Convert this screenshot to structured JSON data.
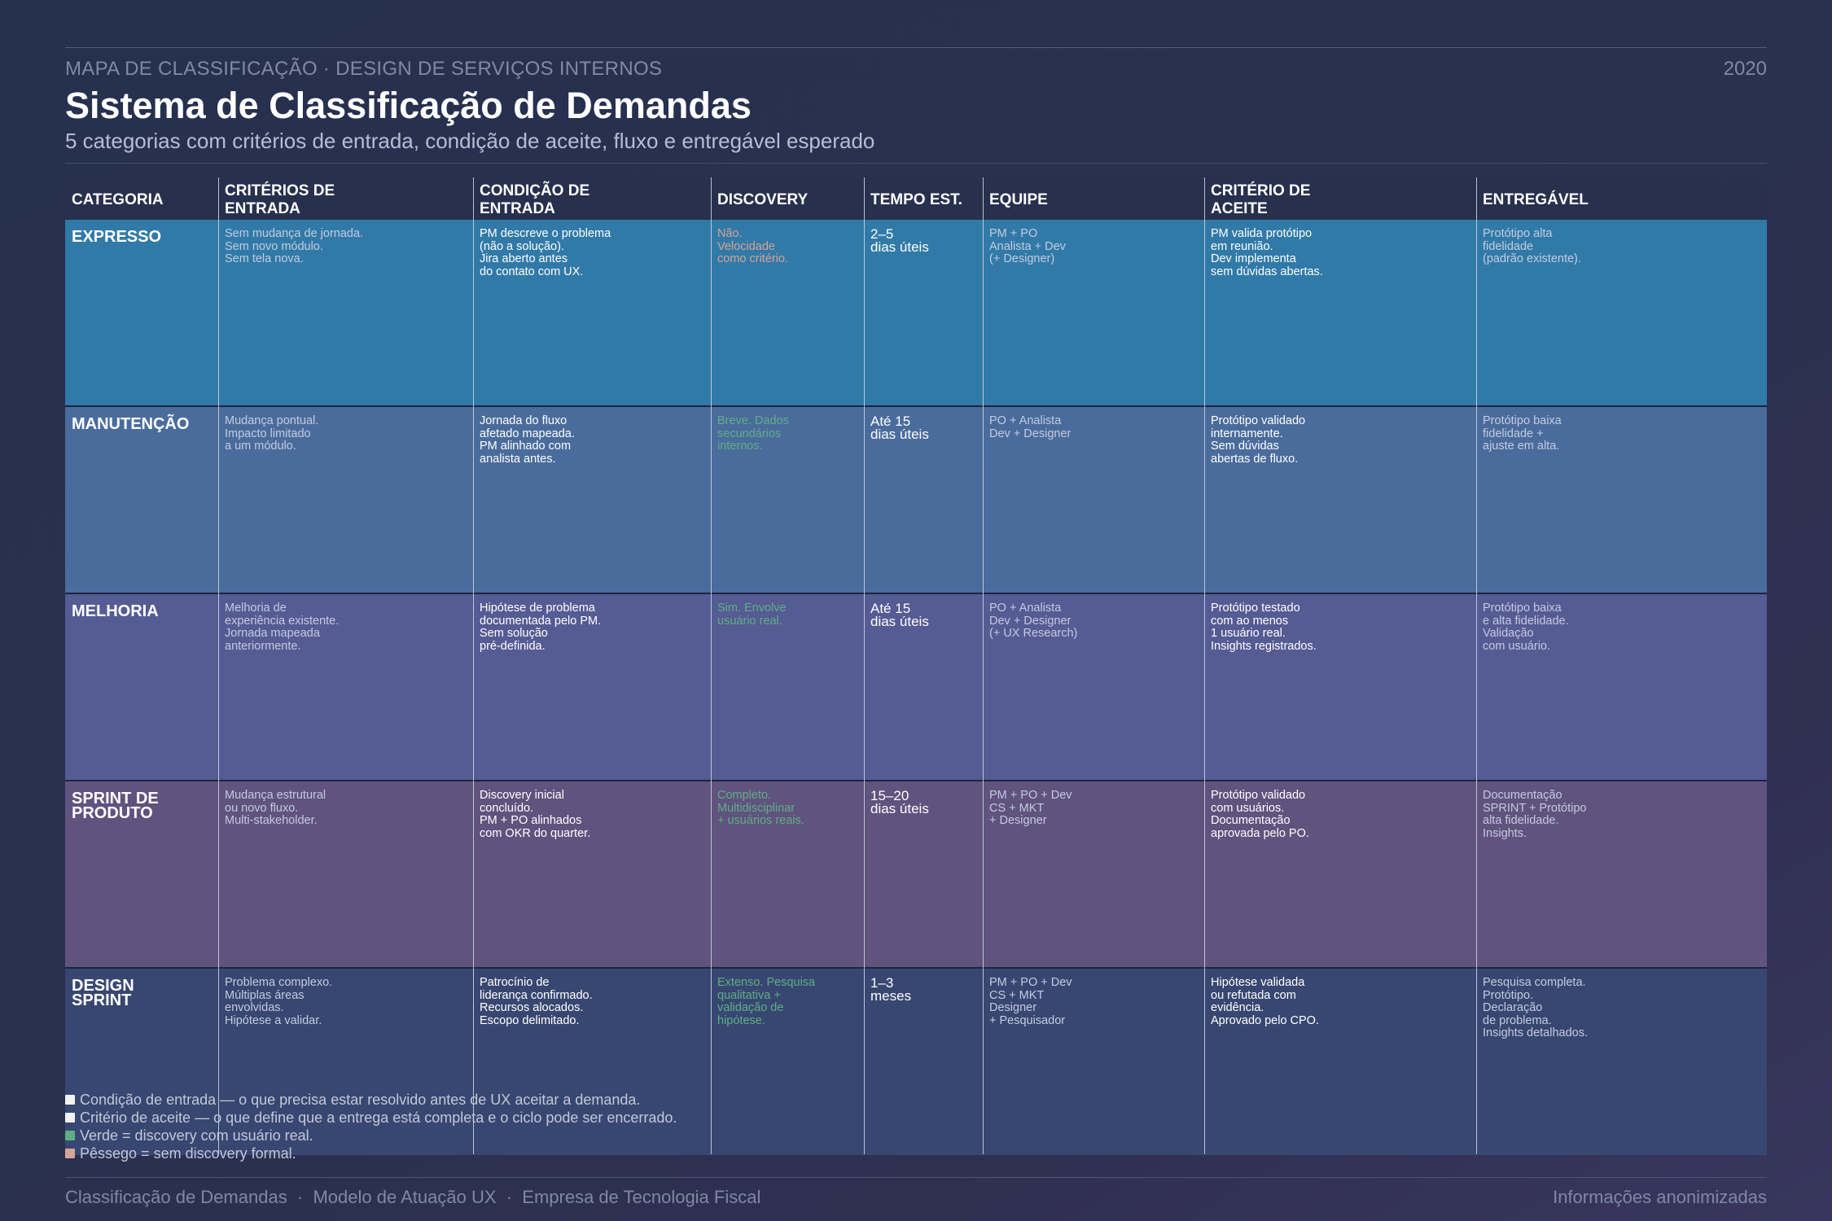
{
  "header": {
    "eyebrow": "MAPA DE CLASSIFICAÇÃO · DESIGN DE SERVIÇOS INTERNOS",
    "year": "2020",
    "title": "Sistema de Classificação de Demandas",
    "subtitle": "5 categorias com critérios de entrada, condição de aceite, fluxo e entregável esperado"
  },
  "table": {
    "columns": [
      "CATEGORIA",
      "CRITÉRIOS DE\nENTRADA",
      "CONDIÇÃO DE\nENTRADA",
      "DISCOVERY",
      "TEMPO EST.",
      "EQUIPE",
      "CRITÉRIO DE\nACEITE",
      "ENTREGÁVEL"
    ],
    "rows": [
      {
        "category": "EXPRESSO",
        "criterios": "Sem mudança de jornada.\nSem novo módulo.\nSem tela nova.",
        "condicao": "PM descreve o problema\n(não a solução).\nJira aberto antes\ndo contato com UX.",
        "discovery": "Não.\nVelocidade\ncomo critério.",
        "tempo": "2–5\ndias úteis",
        "equipe": "PM + PO\nAnalista + Dev\n(+ Designer)",
        "aceite": "PM valida protótipo\nem reunião.\nDev implementa\nsem dúvidas abertas.",
        "entregavel": "Protótipo alta\nfidelidade\n(padrão existente)."
      },
      {
        "category": "MANUTENÇÃO",
        "criterios": "Mudança pontual.\nImpacto limitado\na um módulo.",
        "condicao": "Jornada do fluxo\nafetado mapeada.\nPM alinhado com\nanalista antes.",
        "discovery": "Breve. Dados\nsecundários\ninternos.",
        "tempo": "Até 15\ndias úteis",
        "equipe": "PO + Analista\nDev + Designer",
        "aceite": "Protótipo validado\ninternamente.\nSem dúvidas\nabertas de fluxo.",
        "entregavel": "Protótipo baixa\nfidelidade +\najuste em alta."
      },
      {
        "category": "MELHORIA",
        "criterios": "Melhoria de\nexperiência existente.\nJornada mapeada\nanteriormente.",
        "condicao": "Hipótese de problema\ndocumentada pelo PM.\nSem solução\npré-definida.",
        "discovery": "Sim. Envolve\nusuário real.",
        "tempo": "Até 15\ndias úteis",
        "equipe": "PO + Analista\nDev + Designer\n(+ UX Research)",
        "aceite": "Protótipo testado\ncom ao menos\n1 usuário real.\nInsights registrados.",
        "entregavel": "Protótipo baixa\ne alta fidelidade.\nValidação\ncom usuário."
      },
      {
        "category": "SPRINT DE\nPRODUTO",
        "criterios": "Mudança estrutural\nou novo fluxo.\nMulti-stakeholder.",
        "condicao": "Discovery inicial\nconcluído.\nPM + PO alinhados\ncom OKR do quarter.",
        "discovery": "Completo.\nMultidisciplinar\n+ usuários reais.",
        "tempo": "15–20\ndias úteis",
        "equipe": "PM + PO + Dev\nCS + MKT\n+ Designer",
        "aceite": "Protótipo validado\ncom usuários.\nDocumentação\naprovada pelo PO.",
        "entregavel": "Documentação\nSPRINT + Protótipo\nalta fidelidade.\nInsights."
      },
      {
        "category": "DESIGN\nSPRINT",
        "criterios": "Problema complexo.\nMúltiplas áreas\nenvolvidas.\nHipótese a validar.",
        "condicao": "Patrocínio de\nliderança confirmado.\nRecursos alocados.\nEscopo delimitado.",
        "discovery": "Extenso. Pesquisa\nqualitativa +\nvalidação de\nhipótese.",
        "tempo": "1–3\nmeses",
        "equipe": "PM + PO + Dev\nCS + MKT\nDesigner\n+ Pesquisador",
        "aceite": "Hipótese validada\nou refutada com\nevidência.\nAprovado pelo CPO.",
        "entregavel": "Pesquisa completa.\nProtótipo.\nDeclaração\nde problema.\nInsights detalhados."
      }
    ]
  },
  "legend": [
    {
      "label": "Condição de entrada — o que precisa estar resolvido antes de UX aceitar a demanda.",
      "color": "#f2f2f2"
    },
    {
      "label": "Critério de aceite — o que define que a entrega está completa e o ciclo pode ser encerrado.",
      "color": "#f2f2f2"
    },
    {
      "label": "Verde = discovery com usuário real.",
      "color": "#5fae86"
    },
    {
      "label": "Pêssego = sem discovery formal.",
      "color": "#d6a395"
    }
  ],
  "footer": {
    "left": "Classificação de Demandas  ·  Modelo de Atuação UX  ·  Empresa de Tecnologia Fiscal",
    "right": "Informações anonimizadas"
  },
  "colors": {
    "row_backgrounds": [
      "#317aa8",
      "#4a6c9c",
      "#555b93",
      "#60537e",
      "#384771"
    ],
    "discovery_green": "#5fae86",
    "discovery_peach": "#d6a395",
    "muted_text": "#c4cbe0",
    "white_text": "#ffffff"
  }
}
